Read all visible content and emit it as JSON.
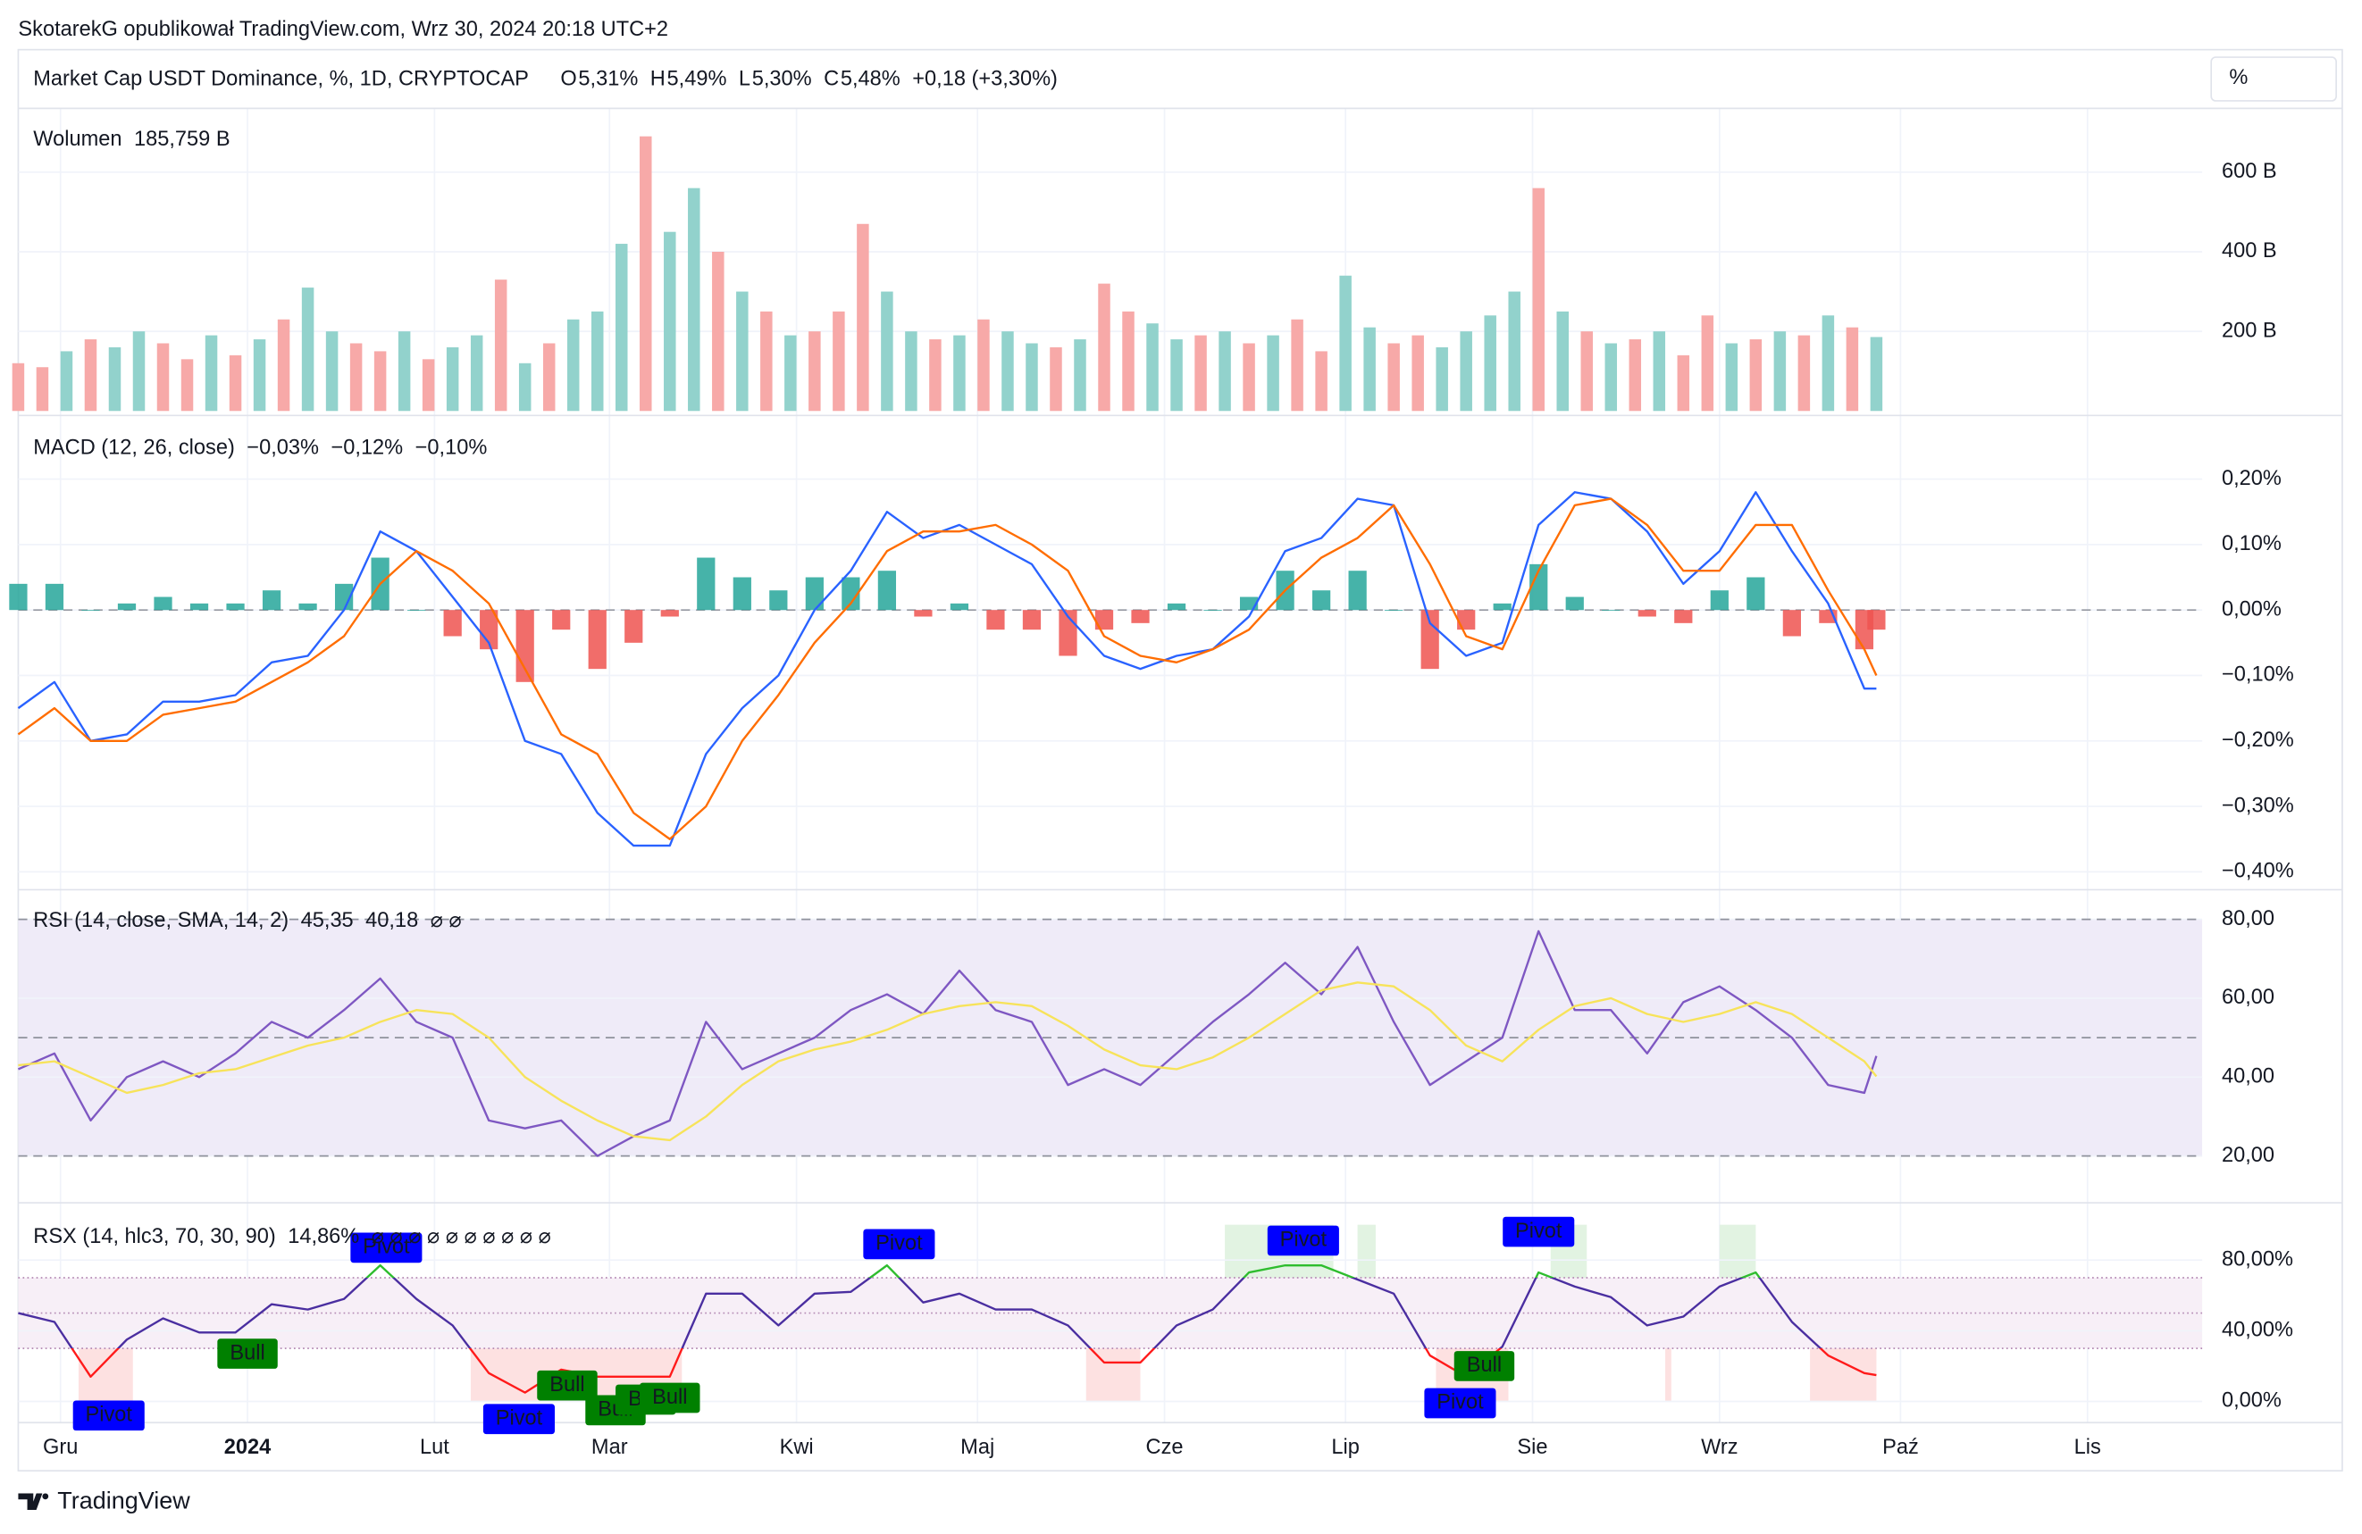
{
  "header": {
    "attribution": "SkotarekG opublikował TradingView.com, Wrz 30, 2024 20:18 UTC+2",
    "symbol": "Market Cap USDT Dominance, %, 1D, CRYPTOCAP",
    "ohlc": [
      {
        "label": "O",
        "value": "5,31%"
      },
      {
        "label": "H",
        "value": "5,49%"
      },
      {
        "label": "L",
        "value": "5,30%"
      },
      {
        "label": "C",
        "value": "5,48%"
      }
    ],
    "change": "+0,18 (+3,30%)",
    "scale_button": "%"
  },
  "x_axis": {
    "xlim": [
      0,
      362
    ],
    "xticks": [
      {
        "value": 7,
        "label": "Gru"
      },
      {
        "value": 38,
        "label": "2024",
        "emphasis": true
      },
      {
        "value": 69,
        "label": "Lut"
      },
      {
        "value": 98,
        "label": "Mar"
      },
      {
        "value": 129,
        "label": "Kwi"
      },
      {
        "value": 159,
        "label": "Maj"
      },
      {
        "value": 190,
        "label": "Cze"
      },
      {
        "value": 220,
        "label": "Lip"
      },
      {
        "value": 251,
        "label": "Sie"
      },
      {
        "value": 282,
        "label": "Wrz"
      },
      {
        "value": 312,
        "label": "Paź"
      },
      {
        "value": 343,
        "label": "Lis"
      }
    ]
  },
  "chart_data": [
    {
      "type": "bar",
      "title": "Wolumen",
      "value_label": "185,759 B",
      "value_color": "#26a69a",
      "x": [
        0,
        4,
        8,
        12,
        16,
        20,
        24,
        28,
        32,
        36,
        40,
        44,
        48,
        52,
        56,
        60,
        64,
        68,
        72,
        76,
        80,
        84,
        88,
        92,
        96,
        100,
        104,
        108,
        112,
        116,
        120,
        124,
        128,
        132,
        136,
        140,
        144,
        148,
        152,
        156,
        160,
        164,
        168,
        172,
        176,
        180,
        184,
        188,
        192,
        196,
        200,
        204,
        208,
        212,
        216,
        220,
        224,
        228,
        232,
        236,
        240,
        244,
        248,
        252,
        256,
        260,
        264,
        268,
        272,
        276,
        280,
        284,
        288,
        292,
        296,
        300,
        304,
        308
      ],
      "values": [
        120,
        110,
        150,
        180,
        160,
        200,
        170,
        130,
        190,
        140,
        180,
        230,
        310,
        200,
        170,
        150,
        200,
        130,
        160,
        190,
        330,
        120,
        170,
        230,
        250,
        420,
        690,
        450,
        560,
        400,
        300,
        250,
        190,
        200,
        250,
        470,
        300,
        200,
        180,
        190,
        230,
        200,
        170,
        160,
        180,
        320,
        250,
        220,
        180,
        190,
        200,
        170,
        190,
        230,
        150,
        340,
        210,
        170,
        190,
        160,
        200,
        240,
        300,
        560,
        250,
        200,
        170,
        180,
        200,
        140,
        240,
        170,
        180,
        200,
        190,
        240,
        210,
        185.759
      ],
      "colors": [
        "#f7a9a8",
        "#f7a9a8",
        "#92d2cc",
        "#f7a9a8",
        "#92d2cc",
        "#92d2cc",
        "#f7a9a8",
        "#f7a9a8",
        "#92d2cc",
        "#f7a9a8",
        "#92d2cc",
        "#f7a9a8",
        "#92d2cc",
        "#92d2cc",
        "#f7a9a8",
        "#f7a9a8",
        "#92d2cc",
        "#f7a9a8",
        "#92d2cc",
        "#92d2cc",
        "#f7a9a8",
        "#92d2cc",
        "#f7a9a8",
        "#92d2cc",
        "#92d2cc",
        "#92d2cc",
        "#f7a9a8",
        "#92d2cc",
        "#92d2cc",
        "#f7a9a8",
        "#92d2cc",
        "#f7a9a8",
        "#92d2cc",
        "#f7a9a8",
        "#f7a9a8",
        "#f7a9a8",
        "#92d2cc",
        "#92d2cc",
        "#f7a9a8",
        "#92d2cc",
        "#f7a9a8",
        "#92d2cc",
        "#92d2cc",
        "#f7a9a8",
        "#92d2cc",
        "#f7a9a8",
        "#f7a9a8",
        "#92d2cc",
        "#92d2cc",
        "#f7a9a8",
        "#92d2cc",
        "#f7a9a8",
        "#92d2cc",
        "#f7a9a8",
        "#f7a9a8",
        "#92d2cc",
        "#92d2cc",
        "#f7a9a8",
        "#f7a9a8",
        "#92d2cc",
        "#92d2cc",
        "#92d2cc",
        "#92d2cc",
        "#f7a9a8",
        "#92d2cc",
        "#f7a9a8",
        "#92d2cc",
        "#f7a9a8",
        "#92d2cc",
        "#f7a9a8",
        "#f7a9a8",
        "#92d2cc",
        "#f7a9a8",
        "#92d2cc",
        "#f7a9a8",
        "#92d2cc",
        "#f7a9a8",
        "#92d2cc"
      ],
      "ylim": [
        0,
        730
      ],
      "yticks": [
        {
          "value": 200,
          "label": "200 B"
        },
        {
          "value": 400,
          "label": "400 B"
        },
        {
          "value": 600,
          "label": "600 B"
        }
      ]
    },
    {
      "type": "line",
      "title": "MACD (12, 26, close)",
      "x": [
        0,
        6,
        12,
        18,
        24,
        30,
        36,
        42,
        48,
        54,
        60,
        66,
        72,
        78,
        84,
        90,
        96,
        102,
        108,
        114,
        120,
        126,
        132,
        138,
        144,
        150,
        156,
        162,
        168,
        174,
        180,
        186,
        192,
        198,
        204,
        210,
        216,
        222,
        228,
        234,
        240,
        246,
        252,
        258,
        264,
        270,
        276,
        282,
        288,
        294,
        300,
        306,
        308
      ],
      "series": [
        {
          "style": "histogram",
          "color": "#26a69a",
          "down_color": "#ef5350",
          "legend_value": "−0,03%",
          "legend_color": "#f7b6c2",
          "values": [
            0.04,
            0.04,
            0.0,
            0.01,
            0.02,
            0.01,
            0.01,
            0.03,
            0.01,
            0.04,
            0.08,
            0.0,
            -0.04,
            -0.06,
            -0.11,
            -0.03,
            -0.09,
            -0.05,
            -0.01,
            0.08,
            0.05,
            0.03,
            0.05,
            0.05,
            0.06,
            -0.01,
            0.01,
            -0.03,
            -0.03,
            -0.07,
            -0.03,
            -0.02,
            0.01,
            0.0,
            0.02,
            0.06,
            0.03,
            0.06,
            0.0,
            -0.09,
            -0.03,
            0.01,
            0.07,
            0.02,
            0.0,
            -0.01,
            -0.02,
            0.03,
            0.05,
            -0.04,
            -0.02,
            -0.06,
            -0.03
          ]
        },
        {
          "style": "line",
          "color": "#2962ff",
          "legend_value": "−0,12%",
          "values": [
            -0.15,
            -0.11,
            -0.2,
            -0.19,
            -0.14,
            -0.14,
            -0.13,
            -0.08,
            -0.07,
            0.0,
            0.12,
            0.09,
            0.02,
            -0.05,
            -0.2,
            -0.22,
            -0.31,
            -0.36,
            -0.36,
            -0.22,
            -0.15,
            -0.1,
            0.0,
            0.06,
            0.15,
            0.11,
            0.13,
            0.1,
            0.07,
            -0.01,
            -0.07,
            -0.09,
            -0.07,
            -0.06,
            -0.01,
            0.09,
            0.11,
            0.17,
            0.16,
            -0.02,
            -0.07,
            -0.05,
            0.13,
            0.18,
            0.17,
            0.12,
            0.04,
            0.09,
            0.18,
            0.09,
            0.01,
            -0.12,
            -0.12
          ]
        },
        {
          "style": "line",
          "color": "#ff6d00",
          "legend_value": "−0,10%",
          "values": [
            -0.19,
            -0.15,
            -0.2,
            -0.2,
            -0.16,
            -0.15,
            -0.14,
            -0.11,
            -0.08,
            -0.04,
            0.04,
            0.09,
            0.06,
            0.01,
            -0.09,
            -0.19,
            -0.22,
            -0.31,
            -0.35,
            -0.3,
            -0.2,
            -0.13,
            -0.05,
            0.01,
            0.09,
            0.12,
            0.12,
            0.13,
            0.1,
            0.06,
            -0.04,
            -0.07,
            -0.08,
            -0.06,
            -0.03,
            0.03,
            0.08,
            0.11,
            0.16,
            0.07,
            -0.04,
            -0.06,
            0.06,
            0.16,
            0.17,
            0.13,
            0.06,
            0.06,
            0.13,
            0.13,
            0.03,
            -0.06,
            -0.1
          ]
        }
      ],
      "zero_line": 0,
      "ylim": [
        -0.425,
        0.265
      ],
      "yticks": [
        {
          "value": -0.4,
          "label": "−0,40%"
        },
        {
          "value": -0.3,
          "label": "−0,30%"
        },
        {
          "value": -0.2,
          "label": "−0,20%"
        },
        {
          "value": -0.1,
          "label": "−0,10%"
        },
        {
          "value": 0,
          "label": "0,00%"
        },
        {
          "value": 0.1,
          "label": "0,10%"
        },
        {
          "value": 0.2,
          "label": "0,20%"
        }
      ]
    },
    {
      "type": "line",
      "title": "RSI (14, close, SMA, 14, 2)",
      "extra_label": "⌀ ⌀",
      "x": [
        0,
        6,
        12,
        18,
        24,
        30,
        36,
        42,
        48,
        54,
        60,
        66,
        72,
        78,
        84,
        90,
        96,
        102,
        108,
        114,
        120,
        126,
        132,
        138,
        144,
        150,
        156,
        162,
        168,
        174,
        180,
        186,
        192,
        198,
        204,
        210,
        216,
        222,
        228,
        234,
        240,
        246,
        252,
        258,
        264,
        270,
        276,
        282,
        288,
        294,
        300,
        306,
        308
      ],
      "series": [
        {
          "style": "line",
          "color": "#7e57c2",
          "legend_value": "45,35",
          "values": [
            42,
            46,
            29,
            40,
            44,
            40,
            46,
            54,
            50,
            57,
            65,
            54,
            50,
            29,
            27,
            29,
            20,
            25,
            29,
            54,
            42,
            46,
            50,
            57,
            61,
            56,
            67,
            57,
            54,
            38,
            42,
            38,
            46,
            54,
            61,
            69,
            61,
            73,
            54,
            38,
            44,
            50,
            77,
            57,
            57,
            46,
            59,
            63,
            57,
            50,
            38,
            36,
            45.35
          ]
        },
        {
          "style": "line",
          "color": "#f7e35a",
          "legend_value": "40,18",
          "values": [
            43,
            44,
            40,
            36,
            38,
            41,
            42,
            45,
            48,
            50,
            54,
            57,
            56,
            50,
            40,
            34,
            29,
            25,
            24,
            30,
            38,
            44,
            47,
            49,
            52,
            56,
            58,
            59,
            58,
            53,
            47,
            43,
            42,
            45,
            50,
            56,
            62,
            64,
            63,
            57,
            48,
            44,
            52,
            58,
            60,
            56,
            54,
            56,
            59,
            56,
            50,
            44,
            40.18
          ]
        }
      ],
      "band": [
        20,
        80
      ],
      "band_color": "#efebf8",
      "levels": [
        20,
        50,
        80
      ],
      "ylim": [
        8.5,
        86
      ],
      "yticks": [
        {
          "value": 20,
          "label": "20,00"
        },
        {
          "value": 40,
          "label": "40,00"
        },
        {
          "value": 60,
          "label": "60,00"
        },
        {
          "value": 80,
          "label": "80,00"
        }
      ]
    },
    {
      "type": "oscillator",
      "title": "RSX (14, hlc3, 70, 30, 90)",
      "extra_label": "⌀ ⌀ ⌀ ⌀ ⌀ ⌀ ⌀ ⌀ ⌀ ⌀",
      "x": [
        0,
        6,
        12,
        18,
        24,
        30,
        36,
        42,
        48,
        54,
        60,
        66,
        72,
        78,
        84,
        90,
        96,
        102,
        108,
        114,
        120,
        126,
        132,
        138,
        144,
        150,
        156,
        162,
        168,
        174,
        180,
        186,
        192,
        198,
        204,
        210,
        216,
        222,
        228,
        234,
        240,
        246,
        252,
        258,
        264,
        270,
        276,
        282,
        288,
        294,
        300,
        306,
        308
      ],
      "series": [
        {
          "style": "line",
          "color": "#4a2ea0",
          "high_color": "#2ebd2e",
          "low_color": "#ff1a1a",
          "legend_value": "14,86%",
          "legend_color": "#ff1a1a",
          "values": [
            50,
            45,
            14,
            35,
            47,
            39,
            39,
            55,
            52,
            58,
            77,
            58,
            43,
            16,
            5,
            18,
            14,
            14,
            14,
            61,
            61,
            43,
            61,
            62,
            77,
            56,
            61,
            52,
            52,
            43,
            22,
            22,
            43,
            52,
            73,
            77,
            77,
            69,
            61,
            26,
            14,
            31,
            73,
            65,
            59,
            43,
            48,
            65,
            73,
            45,
            26,
            16,
            14.86
          ]
        }
      ],
      "band": [
        30,
        70
      ],
      "band_color": "#f7eff7",
      "levels": [
        30,
        50,
        70
      ],
      "zones": [
        {
          "x": [
            10,
            19
          ],
          "y": [
            0,
            30
          ],
          "color": "#fde1e1"
        },
        {
          "x": [
            75,
            110
          ],
          "y": [
            0,
            30
          ],
          "color": "#fde1e1"
        },
        {
          "x": [
            177,
            186
          ],
          "y": [
            0,
            30
          ],
          "color": "#fde1e1"
        },
        {
          "x": [
            235,
            247
          ],
          "y": [
            0,
            30
          ],
          "color": "#fde1e1"
        },
        {
          "x": [
            273,
            274
          ],
          "y": [
            0,
            30
          ],
          "color": "#fde1e1"
        },
        {
          "x": [
            297,
            308
          ],
          "y": [
            0,
            30
          ],
          "color": "#fde1e1"
        },
        {
          "x": [
            200,
            218
          ],
          "y": [
            70,
            100
          ],
          "color": "#e2f3e2"
        },
        {
          "x": [
            222,
            225
          ],
          "y": [
            70,
            100
          ],
          "color": "#e2f3e2"
        },
        {
          "x": [
            254,
            260
          ],
          "y": [
            70,
            100
          ],
          "color": "#e2f3e2"
        },
        {
          "x": [
            282,
            288
          ],
          "y": [
            70,
            100
          ],
          "color": "#e2f3e2"
        }
      ],
      "annotations": [
        {
          "text": "Pivot",
          "x": 15,
          "value": -8,
          "color": "#0000ff"
        },
        {
          "text": "Bull",
          "x": 38,
          "value": 27,
          "color": "#008000"
        },
        {
          "text": "Pivot",
          "x": 61,
          "value": 87,
          "color": "#0000ff"
        },
        {
          "text": "Pivot",
          "x": 83,
          "value": -10,
          "color": "#0000ff"
        },
        {
          "text": "Bull",
          "x": 91,
          "value": 9,
          "color": "#008000"
        },
        {
          "text": "Bull",
          "x": 99,
          "value": -5,
          "color": "#008000"
        },
        {
          "text": "Bull",
          "x": 104,
          "value": 1,
          "color": "#008000"
        },
        {
          "text": "Bull",
          "x": 108,
          "value": 2,
          "color": "#008000"
        },
        {
          "text": "Pivot",
          "x": 146,
          "value": 89,
          "color": "#0000ff"
        },
        {
          "text": "Pivot",
          "x": 213,
          "value": 91,
          "color": "#0000ff"
        },
        {
          "text": "Pivot",
          "x": 239,
          "value": -1,
          "color": "#0000ff"
        },
        {
          "text": "Bull",
          "x": 243,
          "value": 20,
          "color": "#008000"
        },
        {
          "text": "Pivot",
          "x": 252,
          "value": 96,
          "color": "#0000ff"
        }
      ],
      "ylim": [
        -12,
        109
      ],
      "yticks": [
        {
          "value": 0,
          "label": "0,00%"
        },
        {
          "value": 40,
          "label": "40,00%"
        },
        {
          "value": 80,
          "label": "80,00%"
        }
      ]
    }
  ],
  "footer": {
    "brand": "TradingView"
  }
}
